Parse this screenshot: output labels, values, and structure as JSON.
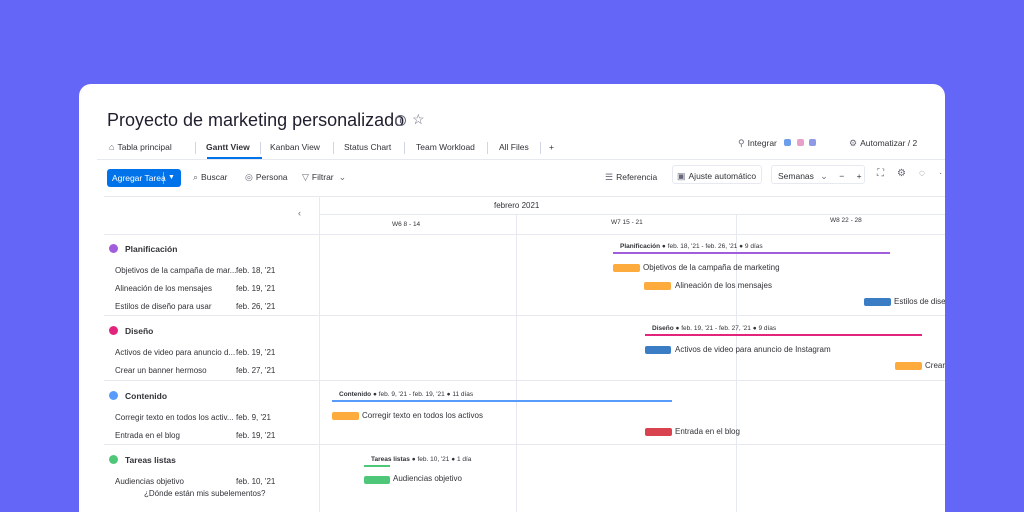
{
  "title": "Proyecto de marketing personalizado",
  "tabs": [
    {
      "label": "Tabla principal",
      "icon": "home-icon"
    },
    {
      "label": "Gantt View",
      "active": true
    },
    {
      "label": "Kanban View"
    },
    {
      "label": "Status Chart"
    },
    {
      "label": "Team Workload"
    },
    {
      "label": "All Files"
    },
    {
      "label": "+"
    }
  ],
  "header_right": {
    "integrate": "Integrar",
    "automate": "Automatizar / 2"
  },
  "toolbar": {
    "add_task": "Agregar Tarea",
    "search": "Buscar",
    "person": "Persona",
    "filter": "Filtrar",
    "reference": "Referencia",
    "auto_fit": "Ajuste automático",
    "scale": "Semanas",
    "zoom_out": "−",
    "zoom_in": "+"
  },
  "timeline": {
    "month": "febrero 2021",
    "weeks": [
      "W6  8 - 14",
      "W7  15 - 21",
      "W8  22 - 28"
    ]
  },
  "groups": [
    {
      "name": "Planificación",
      "color": "#a25ddc",
      "summary": {
        "dates": "● feb. 18, '21 - feb. 26, '21 ●",
        "duration": "9 días"
      },
      "tasks": [
        {
          "name": "Objetivos de la campaña de mar...",
          "full": "Objetivos de la campaña de marketing",
          "date": "feb. 18, '21",
          "color": "#fdab3d"
        },
        {
          "name": "Alineación de los mensajes",
          "full": "Alineación de los mensajes",
          "date": "feb. 19, '21",
          "color": "#fdab3d"
        },
        {
          "name": "Estilos de diseño para usar",
          "full": "Estilos de dise",
          "date": "feb. 26, '21",
          "color": "#3b7dc4"
        }
      ]
    },
    {
      "name": "Diseño",
      "color": "#e2247c",
      "summary": {
        "dates": "● feb. 19, '21 - feb. 27, '21 ●",
        "duration": "9 días"
      },
      "tasks": [
        {
          "name": "Activos de video para anuncio d...",
          "full": "Activos de video para anuncio de Instagram",
          "date": "feb. 19, '21",
          "color": "#3b7dc4"
        },
        {
          "name": "Crear un banner hermoso",
          "full": "Crear",
          "date": "feb. 27, '21",
          "color": "#fdab3d"
        }
      ]
    },
    {
      "name": "Contenido",
      "color": "#579bfc",
      "summary": {
        "dates": "● feb. 9, '21 - feb. 19, '21 ●",
        "duration": "11 días"
      },
      "tasks": [
        {
          "name": "Corregir texto en todos los activ...",
          "full": "Corregir texto en todos los activos",
          "date": "feb. 9, '21",
          "color": "#fdab3d"
        },
        {
          "name": "Entrada en el blog",
          "full": "Entrada en el blog",
          "date": "feb. 19, '21",
          "color": "#d9434f"
        }
      ]
    },
    {
      "name": "Tareas listas",
      "color": "#4fc778",
      "summary": {
        "dates": "● feb. 10, '21 ●",
        "duration": "1 día"
      },
      "tasks": [
        {
          "name": "Audiencias objetivo",
          "full": "Audiencias objetivo",
          "date": "feb. 10, '21",
          "color": "#4fc778"
        }
      ]
    }
  ],
  "subitems_hint": "¿Dónde están mis subelementos?"
}
